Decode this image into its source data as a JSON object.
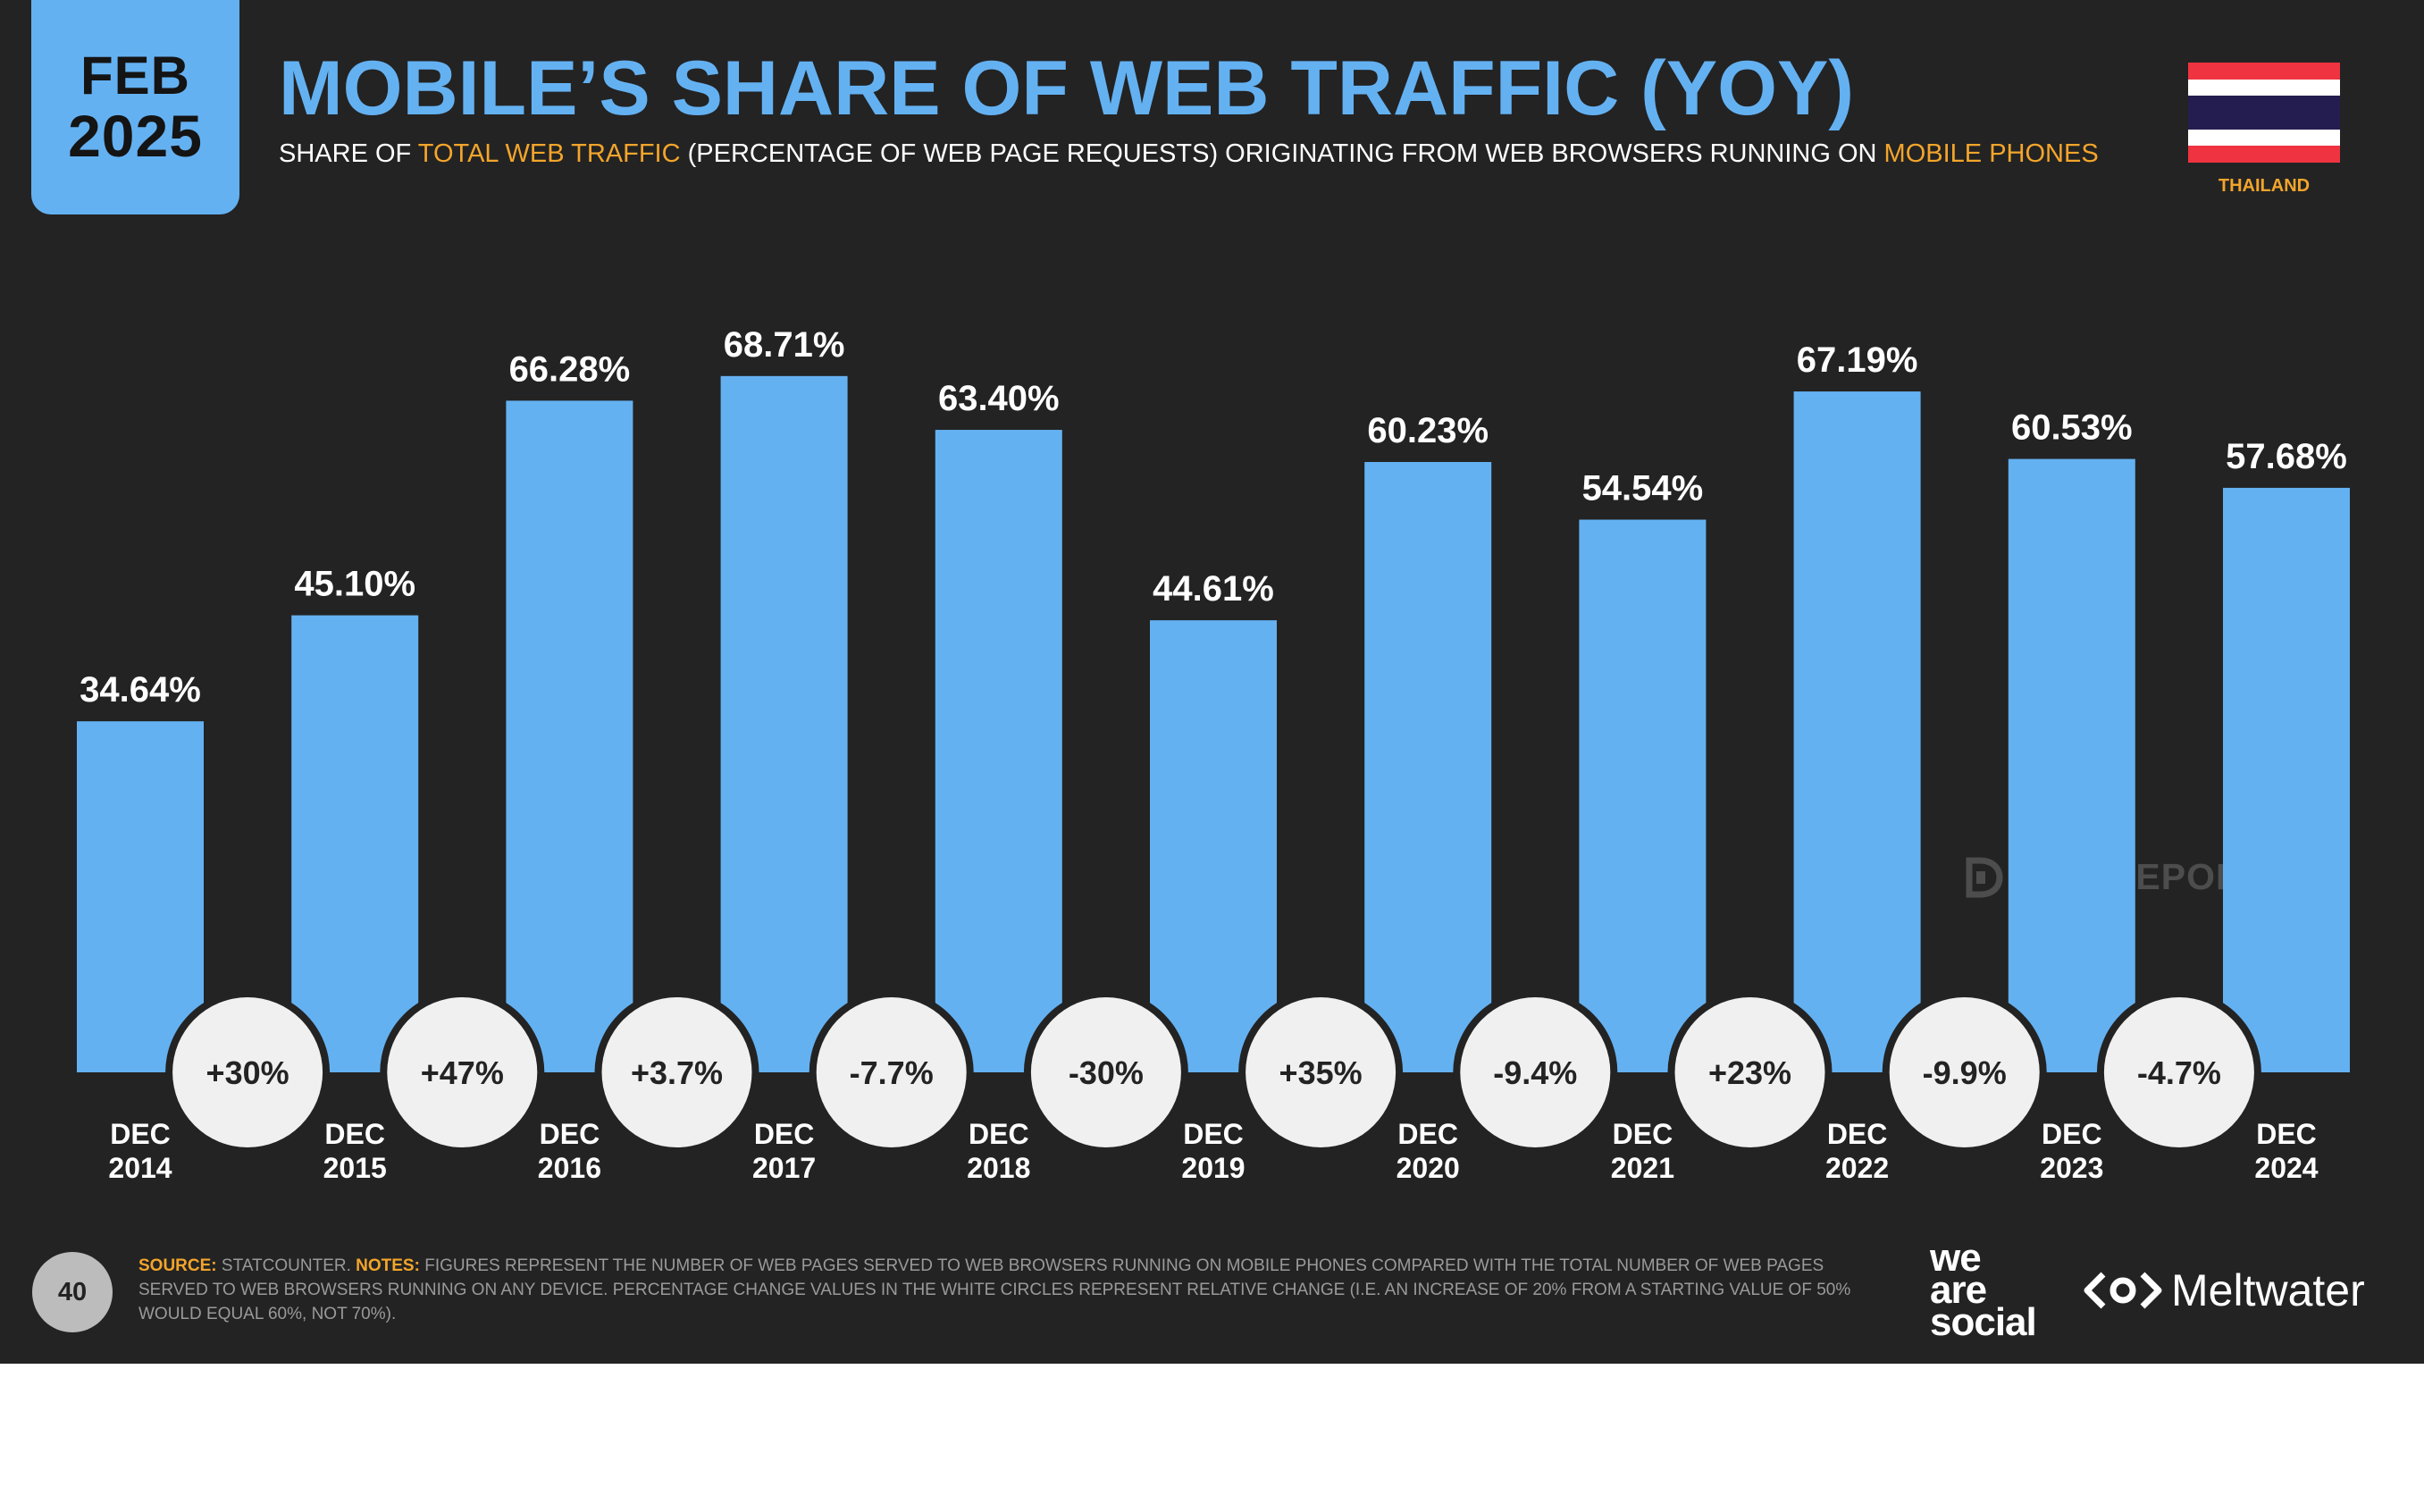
{
  "badge": {
    "month": "FEB",
    "year": "2025"
  },
  "header": {
    "title": "MOBILE’S SHARE OF WEB TRAFFIC (YOY)",
    "subtitle_parts": [
      "SHARE OF ",
      "TOTAL WEB TRAFFIC",
      " (PERCENTAGE OF WEB PAGE REQUESTS) ORIGINATING FROM WEB BROWSERS RUNNING ON ",
      "MOBILE PHONES"
    ]
  },
  "country": {
    "name": "THAILAND",
    "flag_colors": [
      "#ef3340",
      "#ffffff",
      "#241d4f"
    ]
  },
  "chart_data": {
    "type": "bar",
    "categories": [
      [
        "DEC",
        "2014"
      ],
      [
        "DEC",
        "2015"
      ],
      [
        "DEC",
        "2016"
      ],
      [
        "DEC",
        "2017"
      ],
      [
        "DEC",
        "2018"
      ],
      [
        "DEC",
        "2019"
      ],
      [
        "DEC",
        "2020"
      ],
      [
        "DEC",
        "2021"
      ],
      [
        "DEC",
        "2022"
      ],
      [
        "DEC",
        "2023"
      ],
      [
        "DEC",
        "2024"
      ]
    ],
    "values": [
      34.64,
      45.1,
      66.28,
      68.71,
      63.4,
      44.61,
      60.23,
      54.54,
      67.19,
      60.53,
      57.68
    ],
    "value_labels": [
      "34.64%",
      "45.10%",
      "66.28%",
      "68.71%",
      "63.40%",
      "44.61%",
      "60.23%",
      "54.54%",
      "67.19%",
      "60.53%",
      "57.68%"
    ],
    "yoy_changes": [
      "+30%",
      "+47%",
      "+3.7%",
      "-7.7%",
      "-30%",
      "+35%",
      "-9.4%",
      "+23%",
      "-9.9%",
      "-4.7%"
    ],
    "ylim": [
      0,
      100
    ],
    "bar_color": "#64b1f2",
    "grid": false
  },
  "watermark": "DATAREPORTAL",
  "footer": {
    "page_number": "40",
    "source_label": "SOURCE:",
    "source_text": " STATCOUNTER. ",
    "notes_label": "NOTES:",
    "notes_text": " FIGURES REPRESENT THE NUMBER OF WEB PAGES SERVED TO WEB BROWSERS RUNNING ON MOBILE PHONES COMPARED WITH THE TOTAL NUMBER OF WEB PAGES SERVED TO WEB BROWSERS RUNNING ON ANY DEVICE. PERCENTAGE CHANGE VALUES IN THE WHITE CIRCLES REPRESENT RELATIVE CHANGE (I.E. AN INCREASE OF 20% FROM A STARTING VALUE OF 50% WOULD EQUAL 60%, NOT 70%)."
  },
  "logos": {
    "we_are_social": [
      "we",
      "are",
      "social"
    ],
    "meltwater": "Meltwater"
  }
}
